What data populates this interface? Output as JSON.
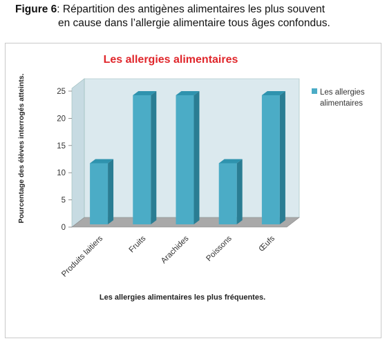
{
  "caption": {
    "label": "Figure 6",
    "line1": ": Répartition des antigènes alimentaires les plus souvent",
    "line2": "en cause dans l’allergie alimentaire tous âges confondus."
  },
  "chart_data": {
    "type": "bar",
    "title": "Les allergies alimentaires",
    "xlabel": "Les allergies alimentaires les plus fréquentes.",
    "ylabel": "Pourcentage des élèves interrogés atteints.",
    "categories": [
      "Produits laitiers",
      "Fruits",
      "Arachides",
      "Poissons",
      "Œufs"
    ],
    "series": [
      {
        "name": "Les allergies alimentaires",
        "values": [
          12.5,
          25,
          25,
          12.5,
          25
        ]
      }
    ],
    "ylim": [
      0,
      25
    ],
    "yticks": [
      0,
      5,
      10,
      15,
      20,
      25
    ],
    "grid": false,
    "legend_position": "right",
    "colors": {
      "bar": "#4bacc6",
      "bar_top": "#2f93ae",
      "bar_side": "#2a7d93",
      "wall": "#dbe9ee",
      "floor": "#a9a9a9"
    }
  }
}
